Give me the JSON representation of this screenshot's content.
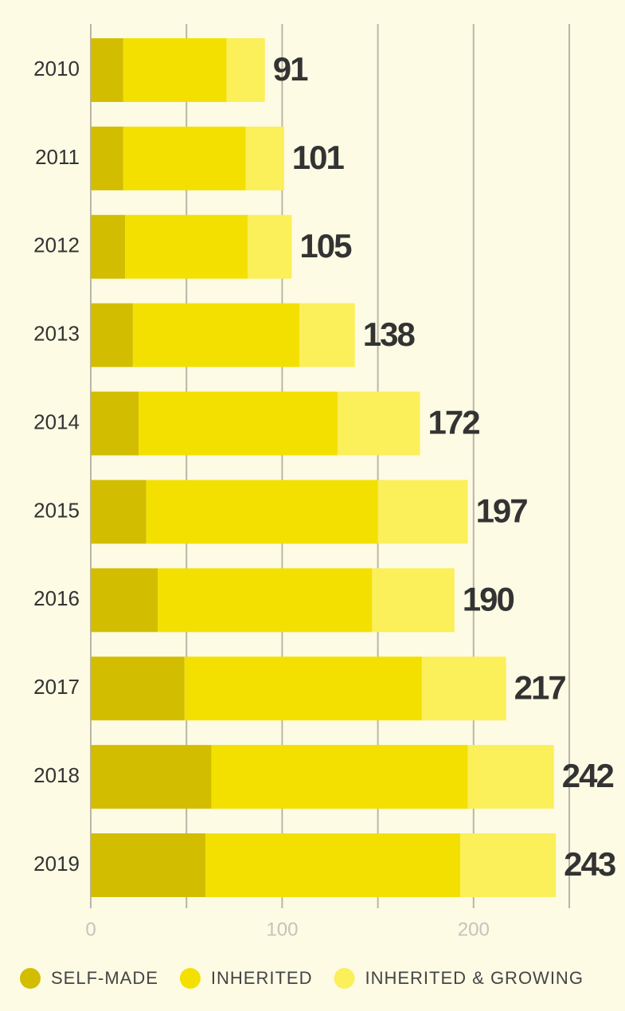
{
  "chart_data": {
    "type": "stacked-bar-horizontal",
    "categories": [
      "2010",
      "2011",
      "2012",
      "2013",
      "2014",
      "2015",
      "2016",
      "2017",
      "2018",
      "2019"
    ],
    "series": [
      {
        "name": "SELF-MADE",
        "color": "#d3bd00",
        "values": [
          17,
          17,
          18,
          22,
          25,
          29,
          35,
          49,
          63,
          60
        ]
      },
      {
        "name": "INHERITED",
        "color": "#f3e000",
        "values": [
          54,
          64,
          64,
          87,
          104,
          121,
          112,
          124,
          134,
          133
        ]
      },
      {
        "name": "INHERITED & GROWING",
        "color": "#fbef5a",
        "values": [
          20,
          20,
          23,
          29,
          43,
          47,
          43,
          44,
          45,
          50
        ]
      }
    ],
    "totals": [
      91,
      101,
      105,
      138,
      172,
      197,
      190,
      217,
      242,
      243
    ],
    "xlim": [
      0,
      250
    ],
    "xticks": [
      0,
      100,
      200
    ],
    "minor_xticks": [
      50,
      150,
      250
    ],
    "grid": true
  }
}
